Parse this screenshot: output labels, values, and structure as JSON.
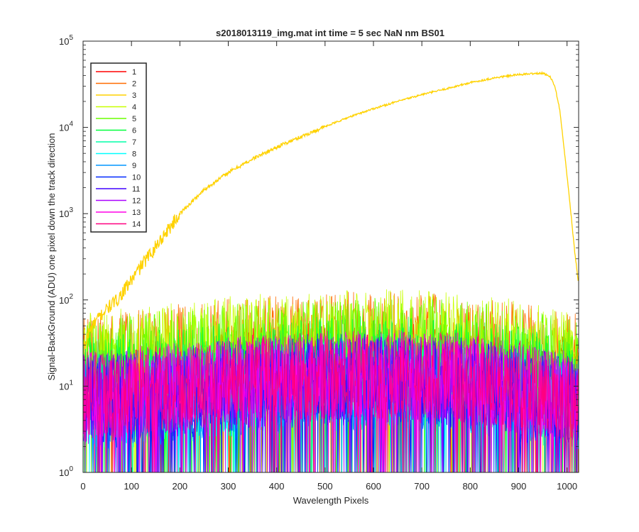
{
  "chart_data": {
    "type": "line",
    "title": "s2018013119_img.mat int time = 5 sec  NaN nm BS01",
    "xlabel": "Wavelength Pixels",
    "ylabel": "Signal-BackGround (ADU) one pixel down the track direction",
    "xlim": [
      0,
      1024
    ],
    "ylim": [
      1,
      100000
    ],
    "yscale": "log",
    "grid": false,
    "legend_position": "top-left",
    "x_ticks": [
      "0",
      "100",
      "200",
      "300",
      "400",
      "500",
      "600",
      "700",
      "800",
      "900",
      "1000"
    ],
    "y_ticks": [
      {
        "base": "10",
        "exp": "0"
      },
      {
        "base": "10",
        "exp": "1"
      },
      {
        "base": "10",
        "exp": "2"
      },
      {
        "base": "10",
        "exp": "3"
      },
      {
        "base": "10",
        "exp": "4"
      },
      {
        "base": "10",
        "exp": "5"
      }
    ],
    "series": [
      {
        "name": "1",
        "color": "#ff0000",
        "kind": "noise",
        "level": 14
      },
      {
        "name": "2",
        "color": "#ff6a00",
        "kind": "noise",
        "level": 30
      },
      {
        "name": "3",
        "color": "#ffd200",
        "kind": "profile",
        "x": [
          5,
          10,
          20,
          30,
          40,
          50,
          60,
          70,
          80,
          100,
          120,
          150,
          170,
          200,
          250,
          300,
          350,
          400,
          450,
          500,
          550,
          600,
          650,
          700,
          750,
          800,
          850,
          900,
          930,
          950,
          965,
          975,
          985,
          995,
          1005,
          1015,
          1024
        ],
        "y": [
          30,
          40,
          50,
          60,
          70,
          80,
          90,
          100,
          120,
          170,
          250,
          420,
          600,
          1000,
          1900,
          3000,
          4300,
          5900,
          7800,
          10200,
          13200,
          16500,
          20000,
          24000,
          28000,
          33000,
          37500,
          41000,
          42000,
          42500,
          39000,
          30000,
          16000,
          5000,
          1500,
          400,
          150
        ]
      },
      {
        "name": "4",
        "color": "#c8ff00",
        "kind": "noise",
        "level": 32
      },
      {
        "name": "5",
        "color": "#6aff00",
        "kind": "noise",
        "level": 26
      },
      {
        "name": "6",
        "color": "#00ff3c",
        "kind": "noise",
        "level": 16
      },
      {
        "name": "7",
        "color": "#00ffa8",
        "kind": "noise",
        "level": 10
      },
      {
        "name": "8",
        "color": "#00ffff",
        "kind": "noise",
        "level": 8
      },
      {
        "name": "9",
        "color": "#0096ff",
        "kind": "noise",
        "level": 8
      },
      {
        "name": "10",
        "color": "#0028ff",
        "kind": "noise",
        "level": 9
      },
      {
        "name": "11",
        "color": "#4000ff",
        "kind": "noise",
        "level": 10
      },
      {
        "name": "12",
        "color": "#aa00ff",
        "kind": "noise",
        "level": 10
      },
      {
        "name": "13",
        "color": "#ff00e6",
        "kind": "noise",
        "level": 11
      },
      {
        "name": "14",
        "color": "#ff0080",
        "kind": "noise",
        "level": 11
      }
    ]
  }
}
